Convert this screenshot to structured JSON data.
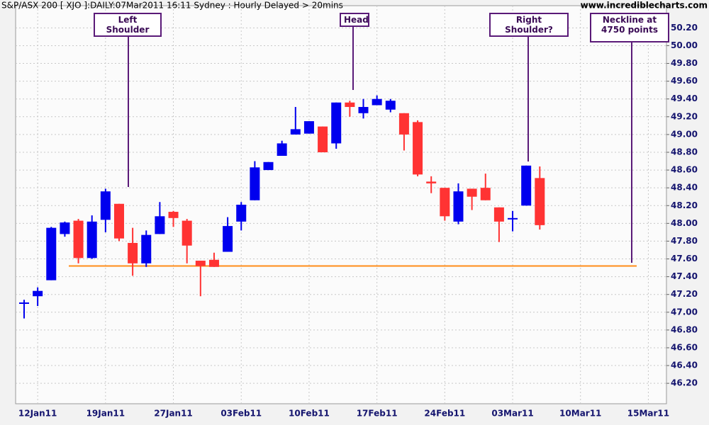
{
  "chart_data": {
    "type": "candlestick",
    "title": "S&P/ASX 200 [ XJO ]:DAILY:07Mar2011 16:11 Sydney : Hourly Delayed > 20mins",
    "source": "www.incrediblecharts.com",
    "categories": [
      null,
      "12Jan11",
      null,
      null,
      null,
      null,
      "19Jan11",
      null,
      null,
      null,
      null,
      "27Jan11",
      null,
      null,
      null,
      null,
      "03Feb11",
      null,
      null,
      null,
      null,
      "10Feb11",
      null,
      null,
      null,
      null,
      "17Feb11",
      null,
      null,
      null,
      null,
      "24Feb11",
      null,
      null,
      null,
      null,
      "03Mar11",
      null,
      null,
      null,
      null,
      "10Mar11",
      null,
      null,
      null,
      null,
      "15Mar11"
    ],
    "open": [
      47.1,
      47.18,
      47.36,
      47.88,
      48.03,
      47.61,
      48.04,
      48.22,
      47.78,
      47.55,
      47.88,
      48.13,
      48.03,
      47.58,
      47.59,
      47.68,
      48.02,
      48.26,
      48.6,
      48.76,
      49.0,
      49.01,
      49.09,
      48.9,
      49.36,
      49.24,
      49.33,
      49.28,
      49.24,
      49.14,
      48.47,
      48.4,
      48.02,
      48.39,
      48.4,
      48.18,
      48.05,
      48.2,
      48.51,
      null,
      null,
      null,
      null,
      null,
      null,
      null,
      null
    ],
    "high": [
      47.14,
      47.28,
      47.96,
      48.02,
      48.05,
      48.09,
      48.39,
      48.22,
      47.95,
      47.92,
      48.24,
      48.14,
      48.05,
      47.58,
      47.67,
      48.07,
      48.24,
      48.7,
      48.69,
      48.93,
      49.31,
      49.15,
      49.09,
      49.36,
      49.38,
      49.4,
      49.44,
      49.4,
      49.24,
      49.16,
      48.53,
      48.4,
      48.45,
      48.39,
      48.56,
      48.18,
      48.14,
      48.65,
      48.64,
      null,
      null,
      null,
      null,
      null,
      null,
      null,
      null
    ],
    "low": [
      46.93,
      47.07,
      47.36,
      47.85,
      47.55,
      47.6,
      47.9,
      47.8,
      47.41,
      47.51,
      47.88,
      47.96,
      47.55,
      47.18,
      47.51,
      47.68,
      47.92,
      48.26,
      48.6,
      48.76,
      49.0,
      49.01,
      48.8,
      48.84,
      49.2,
      49.18,
      49.33,
      49.25,
      48.82,
      48.53,
      48.34,
      48.03,
      47.99,
      48.15,
      48.26,
      47.79,
      47.91,
      48.2,
      47.93,
      null,
      null,
      null,
      null,
      null,
      null,
      null,
      null
    ],
    "close": [
      47.11,
      47.24,
      47.95,
      48.01,
      47.61,
      48.02,
      48.36,
      47.83,
      47.55,
      47.87,
      48.08,
      48.06,
      47.75,
      47.52,
      47.51,
      47.97,
      48.21,
      48.63,
      48.69,
      48.9,
      49.06,
      49.15,
      48.8,
      49.36,
      49.31,
      49.31,
      49.4,
      49.38,
      49.0,
      48.55,
      48.45,
      48.08,
      48.36,
      48.3,
      48.26,
      48.02,
      48.06,
      48.65,
      47.98,
      null,
      null,
      null,
      null,
      null,
      null,
      null,
      null
    ],
    "up_color": "#0000ee",
    "down_color": "#ff3333",
    "neckline": 47.52,
    "neckline_color": "#ff8c1a",
    "ylim": [
      45.97,
      50.45
    ],
    "yticks": [
      {
        "value": 46.2,
        "label": "46.20"
      },
      {
        "value": 46.4,
        "label": "46.40"
      },
      {
        "value": 46.6,
        "label": "46.60"
      },
      {
        "value": 46.8,
        "label": "46.80"
      },
      {
        "value": 47.0,
        "label": "47.00"
      },
      {
        "value": 47.2,
        "label": "47.20"
      },
      {
        "value": 47.4,
        "label": "47.40"
      },
      {
        "value": 47.6,
        "label": "47.60"
      },
      {
        "value": 47.8,
        "label": "47.80"
      },
      {
        "value": 48.0,
        "label": "48.00"
      },
      {
        "value": 48.2,
        "label": "48.20"
      },
      {
        "value": 48.4,
        "label": "48.40"
      },
      {
        "value": 48.6,
        "label": "48.60"
      },
      {
        "value": 48.8,
        "label": "48.80"
      },
      {
        "value": 49.0,
        "label": "49.00"
      },
      {
        "value": 49.2,
        "label": "49.20"
      },
      {
        "value": 49.4,
        "label": "49.40"
      },
      {
        "value": 49.6,
        "label": "49.60"
      },
      {
        "value": 49.8,
        "label": "49.80"
      },
      {
        "value": 50.0,
        "label": "50.00"
      },
      {
        "value": 50.2,
        "label": "50.20"
      }
    ],
    "grid": true,
    "annotations": [
      "Left Shoulder",
      "Head",
      "Right Shoulder?",
      "Neckline at 4750 points"
    ]
  }
}
